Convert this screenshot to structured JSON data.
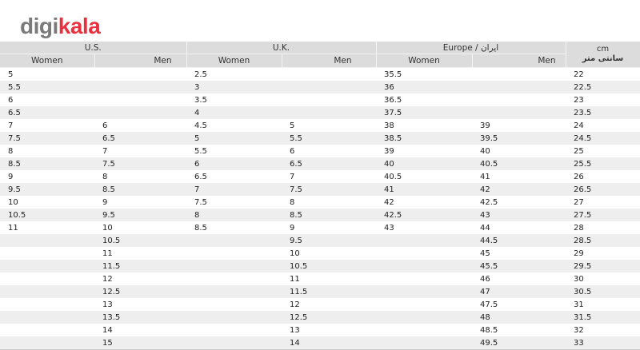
{
  "logo": {
    "part1": "digi",
    "part2": "kala"
  },
  "header": {
    "groups": [
      "U.S.",
      "U.K.",
      "Europe / ایران",
      "cm"
    ],
    "cm_sub": "سانتی متر",
    "sub": [
      "Women",
      "Men",
      "Women",
      "Men",
      "Women",
      "Men"
    ]
  },
  "rows": [
    [
      "5",
      "",
      "2.5",
      "",
      "35.5",
      "",
      "22"
    ],
    [
      "5.5",
      "",
      "3",
      "",
      "36",
      "",
      "22.5"
    ],
    [
      "6",
      "",
      "3.5",
      "",
      "36.5",
      "",
      "23"
    ],
    [
      "6.5",
      "",
      "4",
      "",
      "37.5",
      "",
      "23.5"
    ],
    [
      "7",
      "6",
      "4.5",
      "5",
      "38",
      "39",
      "24"
    ],
    [
      "7.5",
      "6.5",
      "5",
      "5.5",
      "38.5",
      "39.5",
      "24.5"
    ],
    [
      "8",
      "7",
      "5.5",
      "6",
      "39",
      "40",
      "25"
    ],
    [
      "8.5",
      "7.5",
      "6",
      "6.5",
      "40",
      "40.5",
      "25.5"
    ],
    [
      "9",
      "8",
      "6.5",
      "7",
      "40.5",
      "41",
      "26"
    ],
    [
      "9.5",
      "8.5",
      "7",
      "7.5",
      "41",
      "42",
      "26.5"
    ],
    [
      "10",
      "9",
      "7.5",
      "8",
      "42",
      "42.5",
      "27"
    ],
    [
      "10.5",
      "9.5",
      "8",
      "8.5",
      "42.5",
      "43",
      "27.5"
    ],
    [
      "11",
      "10",
      "8.5",
      "9",
      "43",
      "44",
      "28"
    ],
    [
      "",
      "10.5",
      "",
      "9.5",
      "",
      "44.5",
      "28.5"
    ],
    [
      "",
      "11",
      "",
      "10",
      "",
      "45",
      "29"
    ],
    [
      "",
      "11.5",
      "",
      "10.5",
      "",
      "45.5",
      "29.5"
    ],
    [
      "",
      "12",
      "",
      "11",
      "",
      "46",
      "30"
    ],
    [
      "",
      "12.5",
      "",
      "11.5",
      "",
      "47",
      "30.5"
    ],
    [
      "",
      "13",
      "",
      "12",
      "",
      "47.5",
      "31"
    ],
    [
      "",
      "13.5",
      "",
      "12.5",
      "",
      "48",
      "31.5"
    ],
    [
      "",
      "14",
      "",
      "13",
      "",
      "48.5",
      "32"
    ],
    [
      "",
      "15",
      "",
      "14",
      "",
      "49.5",
      "33"
    ]
  ]
}
